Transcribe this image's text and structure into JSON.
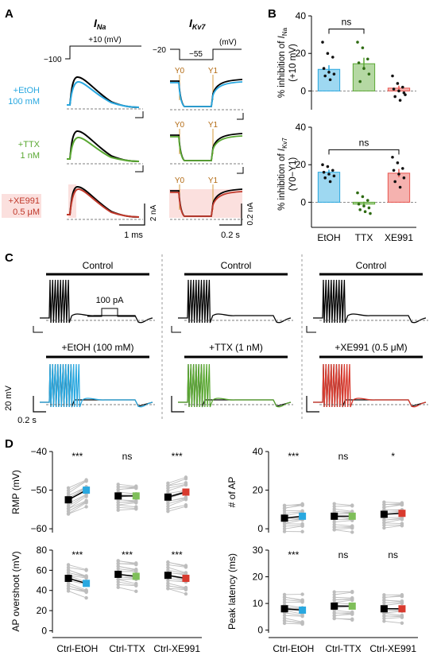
{
  "panelA": {
    "letter": "A",
    "ina_title": "I",
    "ina_sub": "Na",
    "ikv_title": "I",
    "ikv_sub": "Kv7",
    "ina_protocol_step": "+10 (mV)",
    "ina_protocol_hold": "−100",
    "ikv_protocol_hold": "−20",
    "ikv_protocol_step": "−55",
    "ikv_protocol_unit": "(mV)",
    "rows": [
      {
        "drug": "+EtOH",
        "conc": "100 mM",
        "color": "#29a8e0"
      },
      {
        "drug": "+TTX",
        "conc": "1 nM",
        "color": "#5aa832"
      },
      {
        "drug": "+XE991",
        "conc": "0.5 μM",
        "color": "#c0392b"
      }
    ],
    "y0_label": "Y0",
    "y1_label": "Y1",
    "scale_ina_y": "2 nA",
    "scale_ina_x": "1 ms",
    "scale_ikv_y": "0.2 nA",
    "scale_ikv_x": "0.2 s"
  },
  "panelB": {
    "letter": "B",
    "ns1": "ns",
    "ns2": "ns",
    "categories": [
      "EtOH",
      "TTX",
      "XE991"
    ],
    "colors": [
      "#29a8e0",
      "#5aa832",
      "#e8554e"
    ]
  },
  "panelC": {
    "letter": "C",
    "control_label": "Control",
    "step_label": "100 pA",
    "drug_labels": [
      "+EtOH (100 mM)",
      "+TTX (1 nM)",
      "+XE991 (0.5 μM)"
    ],
    "scale_y": "20 mV",
    "scale_x": "0.2 s"
  },
  "panelD": {
    "letter": "D",
    "x_categories": [
      "Ctrl-EtOH",
      "Ctrl-TTX",
      "Ctrl-XE991"
    ]
  },
  "chart_data": [
    {
      "id": "B-top",
      "type": "bar",
      "ylabel": "% inhibition of I_Na (+10 mV)",
      "ylabel_line1_pre": "% inhibition of ",
      "ylabel_line1_italic": "I",
      "ylabel_line1_sub": "Na",
      "ylabel_line2": "(+10 mV)",
      "categories": [
        "EtOH",
        "TTX",
        "XE991"
      ],
      "values": [
        11.5,
        14.5,
        1.5
      ],
      "errors": [
        2.2,
        3.2,
        1.3
      ],
      "points": [
        [
          26,
          20,
          18,
          12,
          10,
          9,
          8,
          6
        ],
        [
          26,
          23,
          17,
          15,
          12,
          9,
          5
        ],
        [
          8,
          4,
          2,
          1,
          0,
          -1,
          -3,
          -5,
          -2
        ]
      ],
      "ylim": [
        -10,
        40
      ],
      "yticks": [
        0,
        20,
        40
      ],
      "significance": [
        {
          "pair": [
            "EtOH",
            "TTX"
          ],
          "label": "ns"
        }
      ]
    },
    {
      "id": "B-bottom",
      "type": "bar",
      "ylabel": "% inhibition of I_Kv7 (Y0−Y1)",
      "ylabel_line1_pre": "% inhibition of ",
      "ylabel_line1_italic": "I",
      "ylabel_line1_sub": "Kv7",
      "ylabel_line2": "(Y0−Y1)",
      "categories": [
        "EtOH",
        "TTX",
        "XE991"
      ],
      "values": [
        16,
        -1,
        15.5
      ],
      "errors": [
        1.4,
        1.3,
        2.2
      ],
      "points": [
        [
          20,
          19,
          17,
          16,
          15,
          14,
          13,
          11
        ],
        [
          5,
          3,
          1,
          -1,
          -2,
          -3,
          -4,
          -5,
          -6
        ],
        [
          24,
          21,
          18,
          17,
          15,
          13,
          11,
          8
        ]
      ],
      "ylim": [
        -10,
        40
      ],
      "yticks": [
        0,
        20,
        40
      ],
      "significance": [
        {
          "pair": [
            "EtOH",
            "XE991"
          ],
          "label": "ns"
        }
      ]
    },
    {
      "id": "D-RMP",
      "type": "scatter",
      "ylabel": "RMP (mV)",
      "ylim": [
        -61,
        -40
      ],
      "yticks": [
        -60,
        -50,
        -40
      ],
      "categories": [
        "Ctrl-EtOH",
        "Ctrl-TTX",
        "Ctrl-XE991"
      ],
      "ctrl_mean": [
        -52.5,
        -51.5,
        -51.8
      ],
      "drug_mean": [
        -50.0,
        -51.5,
        -50.5
      ],
      "significance": [
        "***",
        "ns",
        "***"
      ]
    },
    {
      "id": "D-nAP",
      "type": "scatter",
      "ylabel": "# of AP",
      "ylim": [
        -2,
        40
      ],
      "yticks": [
        0,
        20,
        40
      ],
      "categories": [
        "Ctrl-EtOH",
        "Ctrl-TTX",
        "Ctrl-XE991"
      ],
      "ctrl_mean": [
        5.5,
        6.5,
        7.5
      ],
      "drug_mean": [
        6.5,
        6.5,
        8.0
      ],
      "significance": [
        "***",
        "ns",
        "*"
      ]
    },
    {
      "id": "D-overshoot",
      "type": "scatter",
      "ylabel": "AP overshoot (mV)",
      "ylim": [
        -2,
        80
      ],
      "yticks": [
        0,
        20,
        40,
        60,
        80
      ],
      "categories": [
        "Ctrl-EtOH",
        "Ctrl-TTX",
        "Ctrl-XE991"
      ],
      "ctrl_mean": [
        52,
        56,
        55
      ],
      "drug_mean": [
        47,
        54,
        52
      ],
      "significance": [
        "***",
        "***",
        "***"
      ]
    },
    {
      "id": "D-latency",
      "type": "scatter",
      "ylabel": "Peak latency (ms)",
      "ylim": [
        -1,
        30
      ],
      "yticks": [
        0,
        10,
        20,
        30
      ],
      "categories": [
        "Ctrl-EtOH",
        "Ctrl-TTX",
        "Ctrl-XE991"
      ],
      "ctrl_mean": [
        8.0,
        9.0,
        8.0
      ],
      "drug_mean": [
        7.5,
        9.0,
        8.0
      ],
      "significance": [
        "***",
        "ns",
        "ns"
      ]
    }
  ]
}
